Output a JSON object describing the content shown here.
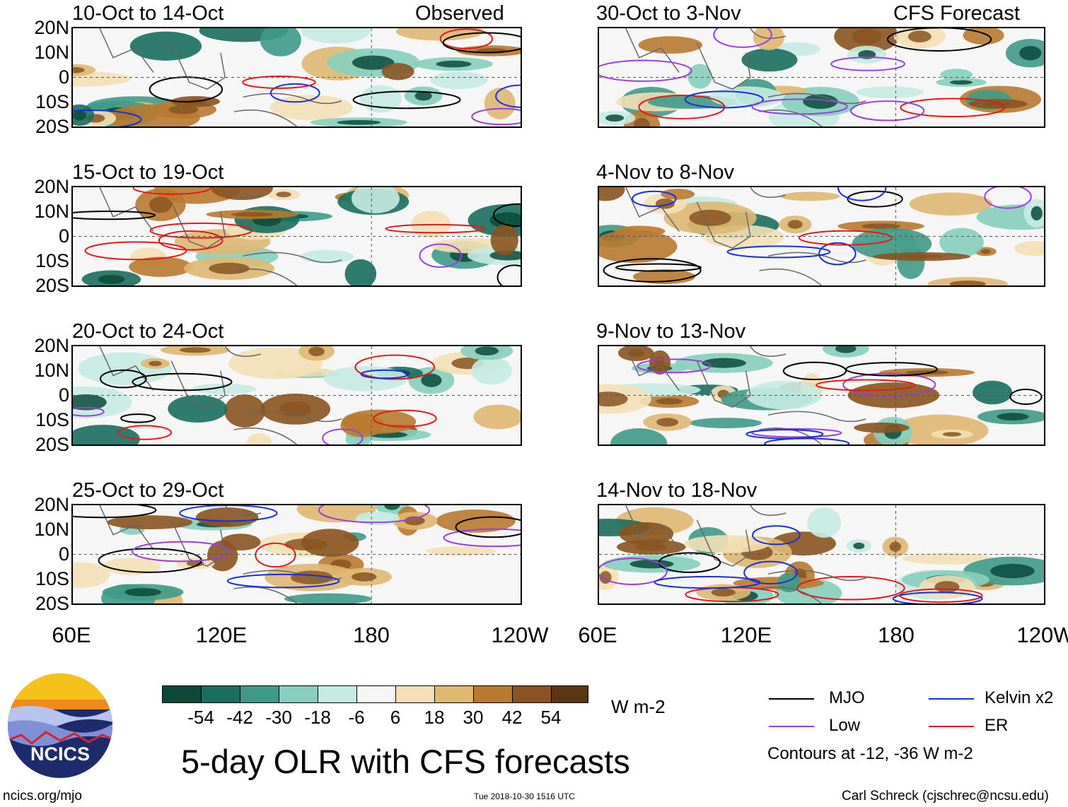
{
  "observed_label": "Observed",
  "forecast_label": "CFS Forecast",
  "lat_labels": [
    "20N",
    "10N",
    "0",
    "10S",
    "20S"
  ],
  "lon_labels": [
    "60E",
    "120E",
    "180",
    "120W"
  ],
  "observed_panels": [
    {
      "title": "10-Oct to 14-Oct"
    },
    {
      "title": "15-Oct to 19-Oct"
    },
    {
      "title": "20-Oct to 24-Oct"
    },
    {
      "title": "25-Oct to 29-Oct"
    }
  ],
  "forecast_panels": [
    {
      "title": "30-Oct to 3-Nov"
    },
    {
      "title": "4-Nov to 8-Nov"
    },
    {
      "title": "9-Nov to 13-Nov"
    },
    {
      "title": "14-Nov to 18-Nov"
    }
  ],
  "colorbar": {
    "labels": [
      "-54",
      "-42",
      "-30",
      "-18",
      "-6",
      "6",
      "18",
      "30",
      "42",
      "54"
    ],
    "colors": [
      "#0b4a3b",
      "#1a6e5e",
      "#3f9a88",
      "#86cfbe",
      "#c6ebe2",
      "#f6f6f6",
      "#f3e0b6",
      "#dfb872",
      "#b97a30",
      "#8a5420",
      "#5a3712"
    ],
    "units": "W m-2"
  },
  "legend": {
    "items": [
      {
        "label": "MJO",
        "color": "#000000"
      },
      {
        "label": "Kelvin x2",
        "color": "#1a2fd6"
      },
      {
        "label": "Low",
        "color": "#9a3fd8"
      },
      {
        "label": "ER",
        "color": "#e01b1b"
      }
    ],
    "contours_note": "Contours at -12, -36 W m-2"
  },
  "logo_text": "NCICS",
  "title": "5-day OLR with CFS forecasts",
  "footer": {
    "url": "ncics.org/mjo",
    "timestamp": "Tue 2018-10-30 1516 UTC",
    "credit": "Carl Schreck (cjschrec@ncsu.edu)"
  }
}
